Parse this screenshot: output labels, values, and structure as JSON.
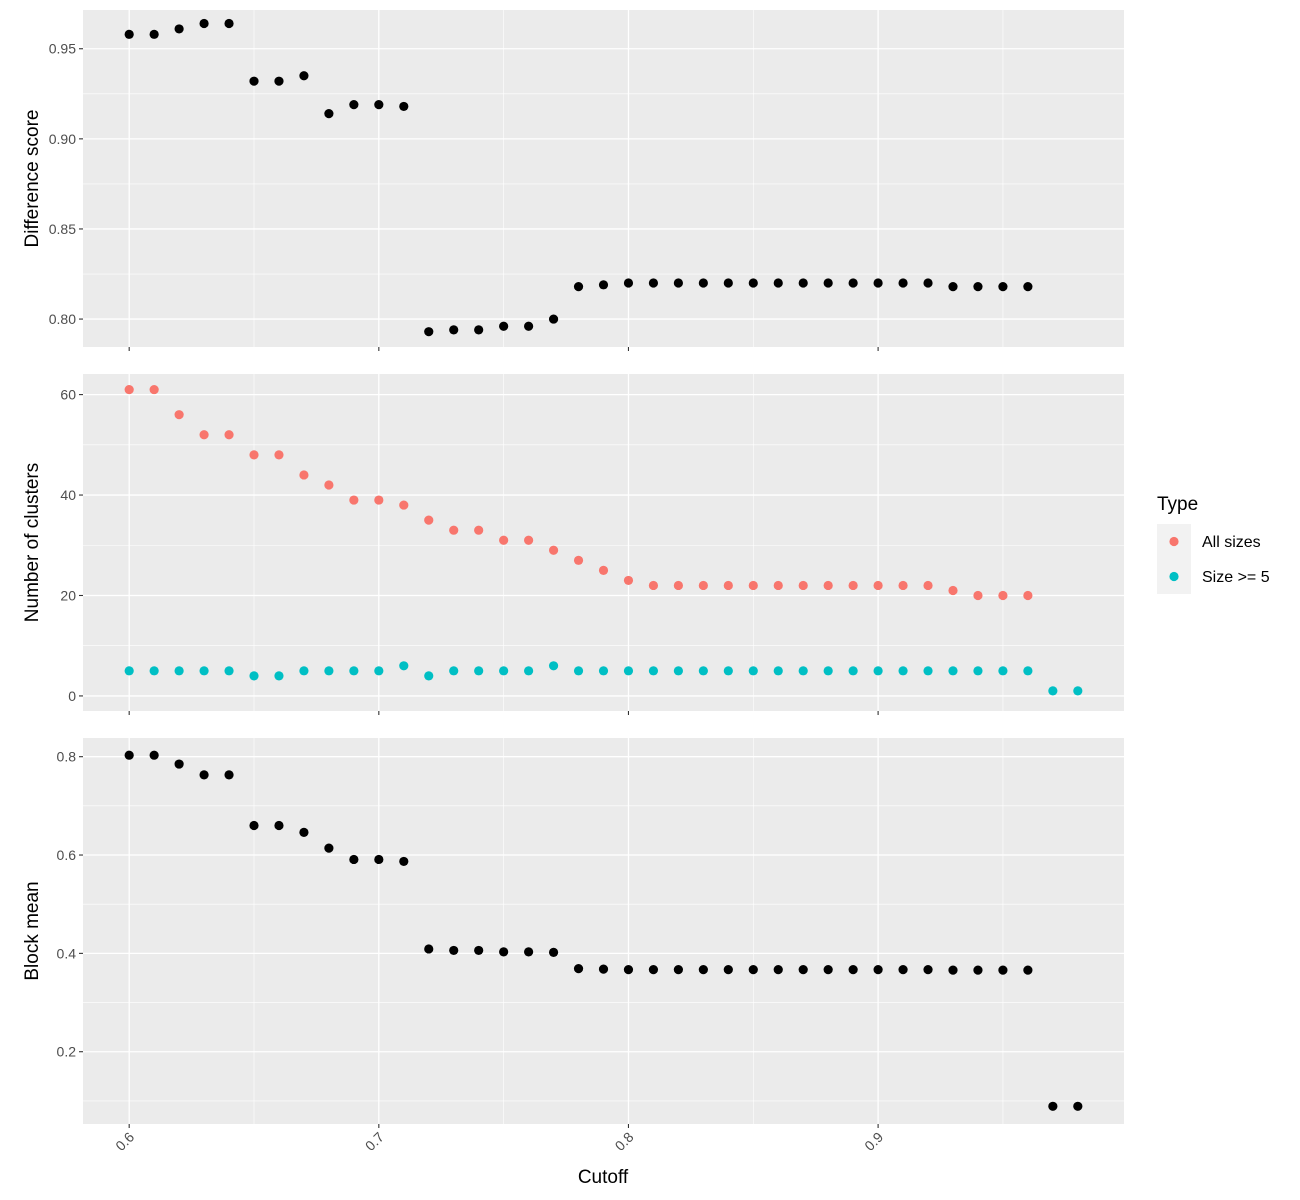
{
  "chart_data": {
    "type": "scatter",
    "xlabel": "Cutoff",
    "xlim": [
      0.5815,
      0.9985
    ],
    "x_ticks": [
      0.6,
      0.7,
      0.8,
      0.9
    ],
    "x_tick_labels": [
      "0.6",
      "0.7",
      "0.8",
      "0.9"
    ],
    "grid": true,
    "legend": {
      "title": "Type",
      "position": "right",
      "entries": [
        {
          "label": "All sizes",
          "color": "#F8766D"
        },
        {
          "label": "Size >= 5",
          "color": "#00BFC4"
        }
      ]
    },
    "panels": [
      {
        "ylabel": "Difference score",
        "ylim": [
          0.7845,
          0.9715
        ],
        "y_ticks": [
          0.8,
          0.85,
          0.9,
          0.95
        ],
        "y_tick_labels": [
          "0.80",
          "0.85",
          "0.90",
          "0.95"
        ],
        "series": [
          {
            "color": "#000000",
            "x": [
              0.6,
              0.61,
              0.62,
              0.63,
              0.64,
              0.65,
              0.66,
              0.67,
              0.68,
              0.69,
              0.7,
              0.71,
              0.72,
              0.73,
              0.74,
              0.75,
              0.76,
              0.77,
              0.78,
              0.79,
              0.8,
              0.81,
              0.82,
              0.83,
              0.84,
              0.85,
              0.86,
              0.87,
              0.88,
              0.89,
              0.9,
              0.91,
              0.92,
              0.93,
              0.94,
              0.95,
              0.96
            ],
            "y": [
              0.958,
              0.958,
              0.961,
              0.964,
              0.964,
              0.932,
              0.932,
              0.935,
              0.914,
              0.919,
              0.919,
              0.918,
              0.793,
              0.794,
              0.794,
              0.796,
              0.796,
              0.8,
              0.818,
              0.819,
              0.82,
              0.82,
              0.82,
              0.82,
              0.82,
              0.82,
              0.82,
              0.82,
              0.82,
              0.82,
              0.82,
              0.82,
              0.82,
              0.818,
              0.818,
              0.818,
              0.818
            ]
          }
        ]
      },
      {
        "ylabel": "Number of clusters",
        "ylim": [
          -3,
          64.1
        ],
        "y_ticks": [
          0,
          20,
          40,
          60
        ],
        "y_tick_labels": [
          "0",
          "20",
          "40",
          "60"
        ],
        "series": [
          {
            "name": "All sizes",
            "color": "#F8766D",
            "x": [
              0.6,
              0.61,
              0.62,
              0.63,
              0.64,
              0.65,
              0.66,
              0.67,
              0.68,
              0.69,
              0.7,
              0.71,
              0.72,
              0.73,
              0.74,
              0.75,
              0.76,
              0.77,
              0.78,
              0.79,
              0.8,
              0.81,
              0.82,
              0.83,
              0.84,
              0.85,
              0.86,
              0.87,
              0.88,
              0.89,
              0.9,
              0.91,
              0.92,
              0.93,
              0.94,
              0.95,
              0.96
            ],
            "y": [
              61,
              61,
              56,
              52,
              52,
              48,
              48,
              44,
              42,
              39,
              39,
              38,
              35,
              33,
              33,
              31,
              31,
              29,
              27,
              25,
              23,
              22,
              22,
              22,
              22,
              22,
              22,
              22,
              22,
              22,
              22,
              22,
              22,
              21,
              20,
              20,
              20
            ]
          },
          {
            "name": "Size >= 5",
            "color": "#00BFC4",
            "x": [
              0.6,
              0.61,
              0.62,
              0.63,
              0.64,
              0.65,
              0.66,
              0.67,
              0.68,
              0.69,
              0.7,
              0.71,
              0.72,
              0.73,
              0.74,
              0.75,
              0.76,
              0.77,
              0.78,
              0.79,
              0.8,
              0.81,
              0.82,
              0.83,
              0.84,
              0.85,
              0.86,
              0.87,
              0.88,
              0.89,
              0.9,
              0.91,
              0.92,
              0.93,
              0.94,
              0.95,
              0.96,
              0.97,
              0.98
            ],
            "y": [
              5,
              5,
              5,
              5,
              5,
              4,
              4,
              5,
              5,
              5,
              5,
              6,
              4,
              5,
              5,
              5,
              5,
              6,
              5,
              5,
              5,
              5,
              5,
              5,
              5,
              5,
              5,
              5,
              5,
              5,
              5,
              5,
              5,
              5,
              5,
              5,
              5,
              1,
              1
            ]
          }
        ]
      },
      {
        "ylabel": "Block mean",
        "ylim": [
          0.053,
          0.838
        ],
        "y_ticks": [
          0.2,
          0.4,
          0.6,
          0.8
        ],
        "y_tick_labels": [
          "0.2",
          "0.4",
          "0.6",
          "0.8"
        ],
        "series": [
          {
            "color": "#000000",
            "x": [
              0.6,
              0.61,
              0.62,
              0.63,
              0.64,
              0.65,
              0.66,
              0.67,
              0.68,
              0.69,
              0.7,
              0.71,
              0.72,
              0.73,
              0.74,
              0.75,
              0.76,
              0.77,
              0.78,
              0.79,
              0.8,
              0.81,
              0.82,
              0.83,
              0.84,
              0.85,
              0.86,
              0.87,
              0.88,
              0.89,
              0.9,
              0.91,
              0.92,
              0.93,
              0.94,
              0.95,
              0.96,
              0.97,
              0.98
            ],
            "y": [
              0.803,
              0.803,
              0.785,
              0.763,
              0.763,
              0.66,
              0.66,
              0.646,
              0.614,
              0.591,
              0.591,
              0.587,
              0.409,
              0.406,
              0.406,
              0.403,
              0.403,
              0.402,
              0.369,
              0.368,
              0.367,
              0.367,
              0.367,
              0.367,
              0.367,
              0.367,
              0.367,
              0.367,
              0.367,
              0.367,
              0.367,
              0.367,
              0.367,
              0.366,
              0.366,
              0.366,
              0.366,
              0.089,
              0.089
            ]
          }
        ]
      }
    ]
  }
}
